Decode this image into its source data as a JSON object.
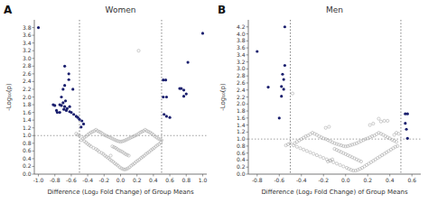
{
  "chart_data": [
    {
      "type": "scatter",
      "title": "Women",
      "annotations": [
        "A"
      ],
      "x_label": "Difference (Log₂ Fold Change) of Group Means",
      "y_label": "-Log₁₀(p)",
      "xlim": [
        -1.05,
        1.05
      ],
      "ylim": [
        0.0,
        4.0
      ],
      "xticks": [
        {
          "value": -1,
          "label": "-1.0"
        },
        -0.8,
        -0.6,
        -0.4,
        -0.2,
        {
          "value": 0,
          "label": "0.0"
        },
        0.2,
        0.4,
        0.6,
        0.8,
        {
          "value": 1,
          "label": "1.0"
        }
      ],
      "yticks": [
        {
          "value": 0,
          "label": "0.0"
        },
        0.2,
        0.4,
        0.6,
        0.8,
        {
          "value": 1,
          "label": "1.0"
        },
        1.2,
        1.4,
        1.6,
        1.8,
        {
          "value": 2,
          "label": "2.0"
        },
        2.2,
        2.4,
        2.6,
        2.8,
        {
          "value": 3,
          "label": "3.0"
        },
        3.2,
        3.4,
        3.6,
        3.8
      ],
      "grid": false,
      "hlines": [
        1.0
      ],
      "vlines": [
        -0.5,
        0.5
      ],
      "series": [
        {
          "color": "#aaaaaa",
          "marker": "open-circle",
          "x": [
            -0.48,
            -0.44,
            -0.42,
            -0.4,
            -0.38,
            -0.36,
            -0.33,
            -0.3,
            -0.28,
            -0.26,
            -0.23,
            -0.21,
            -0.19,
            -0.17,
            -0.15,
            -0.13,
            -0.11,
            -0.09,
            -0.07,
            -0.05,
            -0.03,
            -0.01,
            0.01,
            0.03,
            0.05,
            0.07,
            0.09,
            0.11,
            0.13,
            0.15,
            0.17,
            0.19,
            0.21,
            0.23,
            0.25,
            0.27,
            0.29,
            0.31,
            0.33,
            0.35,
            0.37,
            0.39,
            0.41,
            0.43,
            0.45,
            0.47,
            0.49,
            -0.46,
            -0.44,
            -0.42,
            -0.4,
            -0.38,
            -0.36,
            -0.34,
            -0.32,
            -0.3,
            -0.28,
            -0.26,
            -0.24,
            -0.22,
            -0.2,
            -0.18,
            -0.16,
            -0.14,
            -0.12,
            -0.1,
            -0.08,
            -0.06,
            -0.04,
            -0.02,
            0.0,
            0.02,
            0.04,
            0.06,
            0.08,
            0.1,
            0.12,
            0.14,
            0.16,
            0.18,
            0.2,
            0.22,
            0.24,
            0.26,
            0.28,
            0.3,
            0.32,
            0.34,
            0.36,
            0.38,
            0.4,
            0.42,
            0.44,
            0.46,
            0.48,
            0.5,
            -0.06,
            -0.04,
            -0.02,
            0.0,
            0.02,
            0.04,
            -0.08,
            0.06,
            -0.1,
            0.08,
            -0.12,
            0.1,
            0.22,
            -0.5,
            -0.52,
            -0.54
          ],
          "values": [
            0.88,
            0.85,
            0.82,
            0.78,
            0.75,
            0.72,
            0.68,
            0.65,
            0.62,
            0.58,
            0.55,
            0.52,
            0.48,
            0.45,
            0.42,
            0.38,
            0.35,
            0.32,
            0.28,
            0.25,
            0.22,
            0.18,
            0.15,
            0.13,
            0.12,
            0.13,
            0.15,
            0.18,
            0.22,
            0.25,
            0.28,
            0.32,
            0.35,
            0.38,
            0.42,
            0.45,
            0.48,
            0.52,
            0.55,
            0.58,
            0.62,
            0.65,
            0.68,
            0.72,
            0.75,
            0.78,
            0.82,
            0.92,
            0.95,
            0.98,
            1.02,
            1.05,
            1.08,
            1.1,
            1.12,
            1.15,
            1.12,
            1.1,
            1.08,
            1.05,
            1.02,
            1.0,
            0.98,
            0.96,
            0.94,
            0.92,
            0.9,
            0.88,
            0.86,
            0.85,
            0.84,
            0.85,
            0.86,
            0.88,
            0.9,
            0.92,
            0.94,
            0.96,
            0.98,
            1.0,
            1.02,
            1.05,
            1.08,
            1.1,
            1.12,
            1.15,
            1.12,
            1.1,
            1.08,
            1.05,
            1.02,
            0.98,
            0.95,
            0.92,
            0.9,
            0.88,
            0.68,
            0.65,
            0.62,
            0.6,
            0.58,
            0.55,
            0.7,
            0.52,
            0.72,
            0.5,
            0.48,
            0.48,
            3.2,
            1.0,
            1.02,
            1.05
          ]
        },
        {
          "color": "#1a1f6e",
          "marker": "circle",
          "x": [
            -1.0,
            -0.68,
            -0.63,
            -0.63,
            -0.68,
            -0.7,
            -0.58,
            -0.72,
            -0.67,
            -0.7,
            -0.74,
            -0.72,
            -0.68,
            -0.62,
            -0.65,
            -0.69,
            -0.66,
            -0.62,
            -0.6,
            -0.57,
            -0.54,
            -0.52,
            -0.5,
            -0.47,
            -0.74,
            -0.77,
            -0.8,
            -0.82,
            -0.78,
            -0.45,
            -0.48,
            0.52,
            0.56,
            0.53,
            0.56,
            0.6,
            0.72,
            0.74,
            0.77,
            0.8,
            0.77,
            0.82,
            1.0,
            0.52,
            0.55
          ],
          "values": [
            3.8,
            2.8,
            2.6,
            2.45,
            2.3,
            2.2,
            2.2,
            2.0,
            1.9,
            1.85,
            1.8,
            1.78,
            1.75,
            1.75,
            1.7,
            1.68,
            1.65,
            1.62,
            1.6,
            1.55,
            1.5,
            1.47,
            1.42,
            1.38,
            1.6,
            1.6,
            1.78,
            1.8,
            1.65,
            1.3,
            1.22,
            2.0,
            2.0,
            1.55,
            1.5,
            1.47,
            2.22,
            2.22,
            2.02,
            2.08,
            2.18,
            2.9,
            3.65,
            2.44,
            2.44
          ]
        }
      ]
    },
    {
      "type": "scatter",
      "title": "Men",
      "annotations": [
        "B"
      ],
      "x_label": "Difference (Log₂ Fold Change) of Group Means",
      "y_label": "-Log₁₀(p)",
      "xlim": [
        -0.88,
        0.68
      ],
      "ylim": [
        0.0,
        4.4
      ],
      "xticks": [
        -0.8,
        -0.6,
        -0.4,
        -0.2,
        {
          "value": 0,
          "label": "0.0"
        },
        0.2,
        0.4,
        0.6
      ],
      "yticks": [
        {
          "value": 0,
          "label": "0.0"
        },
        0.2,
        0.4,
        0.6,
        0.8,
        {
          "value": 1,
          "label": "1.0"
        },
        1.2,
        1.4,
        1.6,
        1.8,
        {
          "value": 2,
          "label": "2.0"
        },
        2.2,
        2.4,
        2.6,
        2.8,
        {
          "value": 3,
          "label": "3.0"
        },
        3.2,
        3.4,
        3.6,
        3.8,
        {
          "value": 4,
          "label": "4.0"
        },
        4.2
      ],
      "grid": false,
      "hlines": [
        1.0
      ],
      "vlines": [
        -0.5,
        0.5
      ],
      "series": [
        {
          "color": "#aaaaaa",
          "marker": "open-circle",
          "x": [
            -0.47,
            -0.44,
            -0.41,
            -0.38,
            -0.35,
            -0.32,
            -0.29,
            -0.26,
            -0.23,
            -0.2,
            -0.17,
            -0.14,
            -0.11,
            -0.08,
            -0.05,
            -0.02,
            0.01,
            0.03,
            0.05,
            0.07,
            0.09,
            0.11,
            0.13,
            0.15,
            0.17,
            0.19,
            0.21,
            0.23,
            0.25,
            0.27,
            0.29,
            0.31,
            0.33,
            0.35,
            0.37,
            0.39,
            0.41,
            0.43,
            0.45,
            0.47,
            -0.46,
            -0.44,
            -0.42,
            -0.4,
            -0.38,
            -0.36,
            -0.34,
            -0.32,
            -0.3,
            -0.28,
            -0.26,
            -0.24,
            -0.22,
            -0.2,
            -0.18,
            -0.16,
            -0.14,
            -0.12,
            -0.1,
            -0.08,
            -0.06,
            -0.04,
            -0.02,
            0.0,
            0.02,
            0.04,
            0.06,
            0.08,
            0.1,
            0.12,
            0.14,
            0.16,
            0.18,
            0.2,
            0.22,
            0.24,
            0.26,
            0.28,
            0.3,
            0.32,
            0.34,
            0.36,
            0.38,
            0.4,
            0.42,
            0.44,
            0.46,
            -0.06,
            -0.04,
            -0.02,
            0.0,
            0.02,
            0.04,
            -0.08,
            0.06,
            -0.1,
            0.08,
            -0.12,
            0.1,
            -0.14,
            0.12,
            -0.16,
            0.14,
            -0.48,
            -0.52,
            -0.54,
            0.35,
            0.38,
            0.3,
            0.32,
            -0.15,
            -0.18,
            0.25,
            0.22,
            0.48,
            0.46,
            0.44,
            -0.5
          ],
          "values": [
            0.82,
            0.78,
            0.74,
            0.7,
            0.66,
            0.62,
            0.58,
            0.54,
            0.5,
            0.46,
            0.42,
            0.38,
            0.34,
            0.3,
            0.26,
            0.22,
            0.18,
            0.15,
            0.12,
            0.1,
            0.1,
            0.12,
            0.15,
            0.18,
            0.22,
            0.26,
            0.3,
            0.34,
            0.38,
            0.42,
            0.46,
            0.5,
            0.54,
            0.58,
            0.62,
            0.66,
            0.7,
            0.74,
            0.78,
            0.8,
            0.88,
            0.92,
            0.96,
            1.0,
            1.04,
            1.08,
            1.1,
            1.14,
            1.18,
            1.15,
            1.12,
            1.08,
            1.05,
            1.02,
            1.0,
            0.97,
            0.94,
            0.91,
            0.88,
            0.86,
            0.84,
            0.82,
            0.8,
            0.79,
            0.8,
            0.82,
            0.84,
            0.86,
            0.88,
            0.91,
            0.94,
            0.97,
            1.0,
            1.02,
            1.05,
            1.08,
            1.1,
            1.14,
            1.18,
            1.15,
            1.12,
            1.08,
            1.05,
            1.02,
            0.98,
            0.95,
            0.92,
            0.66,
            0.63,
            0.6,
            0.57,
            0.54,
            0.51,
            0.69,
            0.48,
            0.72,
            0.45,
            0.42,
            0.42,
            0.39,
            0.39,
            0.36,
            0.36,
            2.3,
            0.85,
            0.82,
            1.52,
            1.52,
            1.58,
            1.5,
            1.35,
            1.32,
            1.44,
            1.4,
            1.15,
            1.18,
            1.12,
            0.88
          ]
        },
        {
          "color": "#1a1f6e",
          "marker": "circle",
          "x": [
            -0.8,
            -0.55,
            -0.55,
            -0.57,
            -0.56,
            -0.58,
            -0.56,
            -0.58,
            -0.6,
            -0.7,
            0.54,
            0.56,
            0.54,
            0.56,
            0.55
          ],
          "values": [
            3.5,
            4.2,
            3.1,
            2.85,
            2.7,
            2.5,
            2.42,
            2.22,
            1.6,
            2.48,
            1.72,
            1.72,
            1.45,
            1.02,
            1.28
          ]
        }
      ]
    }
  ]
}
